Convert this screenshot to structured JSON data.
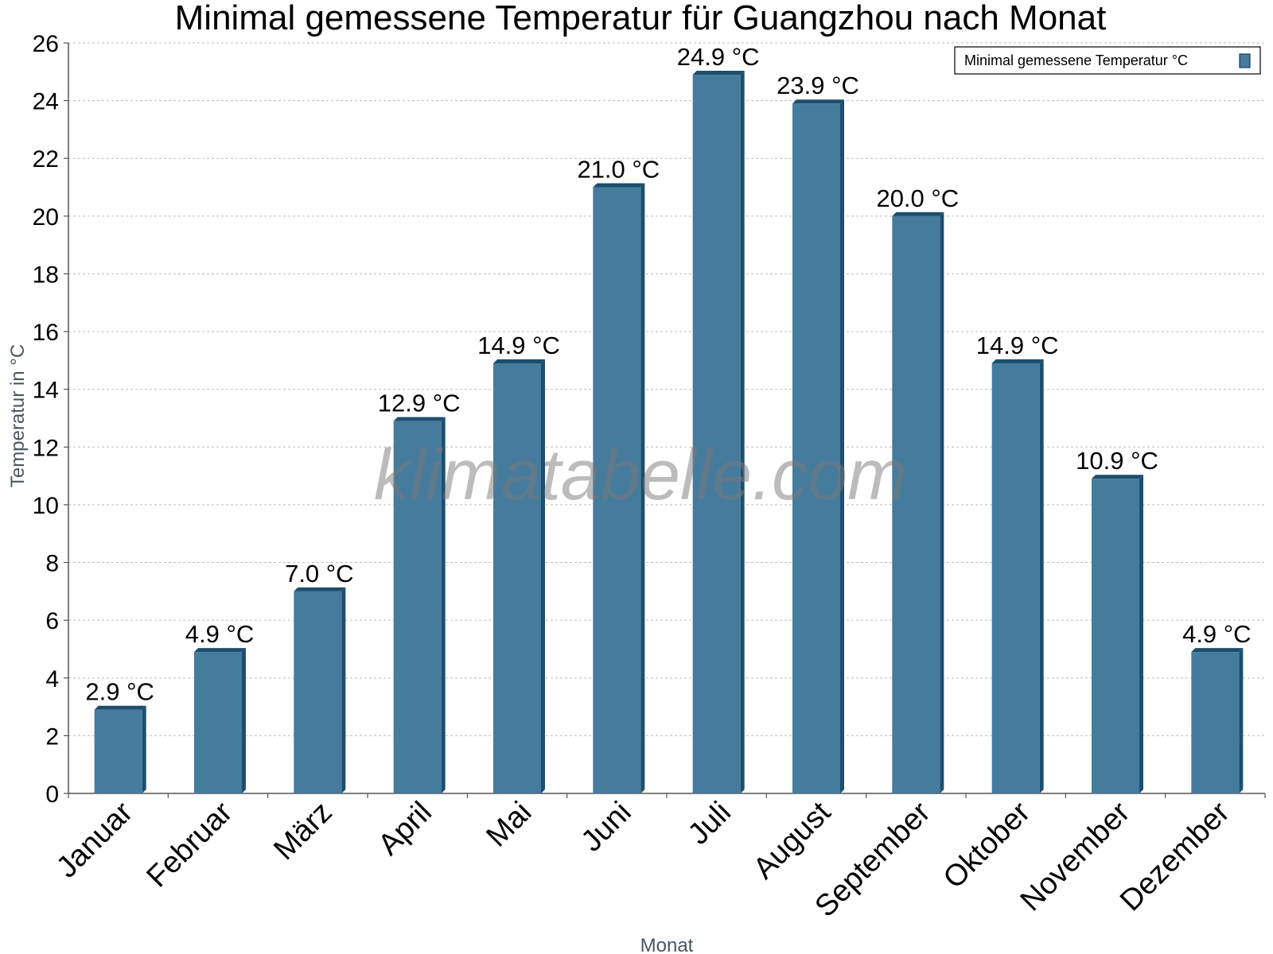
{
  "chart_data": {
    "type": "bar",
    "title": "Minimal gemessene Temperatur für Guangzhou nach Monat",
    "xlabel": "Monat",
    "ylabel": "Temperatur in °C",
    "categories": [
      "Januar",
      "Februar",
      "März",
      "April",
      "Mai",
      "Juni",
      "Juli",
      "August",
      "September",
      "Oktober",
      "November",
      "Dezember"
    ],
    "series": [
      {
        "name": "Minimal gemessene Temperatur °C",
        "values": [
          2.9,
          4.9,
          7.0,
          12.9,
          14.9,
          21.0,
          24.9,
          23.9,
          20.0,
          14.9,
          10.9,
          4.9
        ],
        "labels": [
          "2.9 °C",
          "4.9 °C",
          "7.0 °C",
          "12.9 °C",
          "14.9 °C",
          "21.0 °C",
          "24.9 °C",
          "23.9 °C",
          "20.0 °C",
          "14.9 °C",
          "10.9 °C",
          "4.9 °C"
        ],
        "color": "#457b9d",
        "shade_color": "#1d4e6e"
      }
    ],
    "ylim": [
      0,
      26
    ],
    "yticks": [
      0,
      2,
      4,
      6,
      8,
      10,
      12,
      14,
      16,
      18,
      20,
      22,
      24,
      26
    ],
    "grid": true,
    "legend_position": "top-right"
  },
  "watermark": "klimatabelle.com"
}
